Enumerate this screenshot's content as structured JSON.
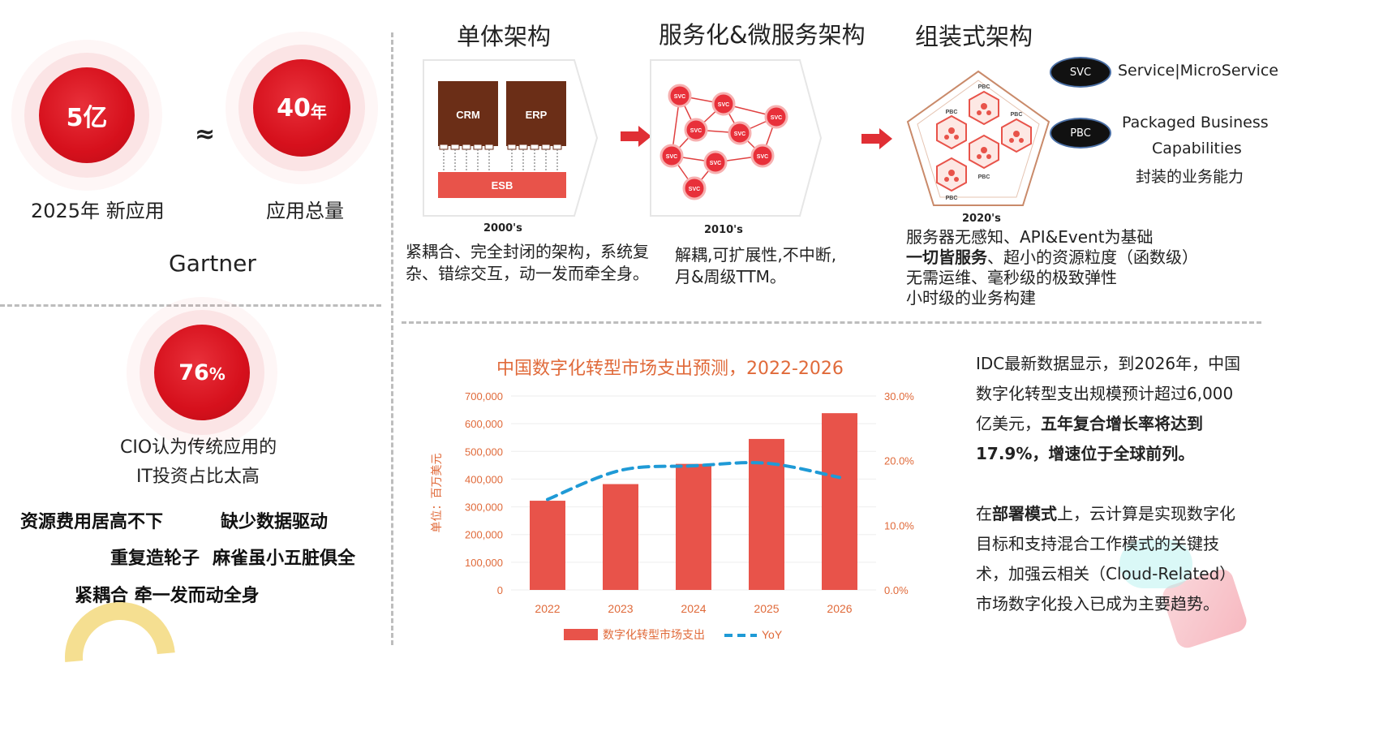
{
  "left_stats": {
    "circle1": {
      "value": "5亿",
      "caption": "2025年 新应用"
    },
    "approx": "≈",
    "circle2": {
      "value": "40",
      "unit": "年",
      "caption": "应用总量"
    },
    "source": "Gartner",
    "circle3": {
      "value": "76",
      "unit": "%",
      "caption_line1": "CIO认为传统应用的",
      "caption_line2": "IT投资占比太高"
    },
    "tags": [
      "资源费用居高不下",
      "缺少数据驱动",
      "重复造轮子",
      "麻雀虽小五脏俱全",
      "紧耦合 牵一发而动全身"
    ]
  },
  "architectures": [
    {
      "title": "单体架构",
      "era": "2000's",
      "blocks": [
        "CRM",
        "ERP",
        "ESB"
      ],
      "desc_line1": "紧耦合、完全封闭的架构，系统复",
      "desc_line2": "杂、错综交互，动一发而牵全身。"
    },
    {
      "title": "服务化&微服务架构",
      "era": "2010's",
      "node_label": "SVC",
      "desc_line1": "解耦,可扩展性,不中断,",
      "desc_line2": "月&周级TTM。"
    },
    {
      "title": "组装式架构",
      "era": "2020's",
      "node_label": "PBC",
      "desc_lines": [
        {
          "pre": "服务器无感知、API&Event为基础",
          "bold": "",
          "post": ""
        },
        {
          "pre": "",
          "bold": "一切皆服务",
          "post": "、超小的资源粒度（函数级）"
        },
        {
          "pre": "无需运维、毫秒级的极致弹性",
          "bold": "",
          "post": ""
        },
        {
          "pre": "小时级的业务构建",
          "bold": "",
          "post": ""
        }
      ]
    }
  ],
  "legend": {
    "svc": {
      "abbr": "SVC",
      "text": "Service|MicroService"
    },
    "pbc": {
      "abbr": "PBC",
      "line1": "Packaged Business",
      "line2": "Capabilities",
      "line3": "封装的业务能力"
    }
  },
  "chart_data": {
    "type": "bar",
    "title": "中国数字化转型市场支出预测，2022-2026",
    "categories": [
      "2022",
      "2023",
      "2024",
      "2025",
      "2026"
    ],
    "series": [
      {
        "name": "数字化转型市场支出",
        "type": "bar",
        "axis": "left",
        "values": [
          322000,
          382000,
          455000,
          545000,
          638000
        ]
      },
      {
        "name": "YoY",
        "type": "line",
        "axis": "right",
        "values": [
          14.0,
          18.5,
          19.2,
          19.6,
          17.4
        ]
      }
    ],
    "ylabel": "单位：百万美元",
    "ylim": [
      0,
      700000
    ],
    "y_ticks": [
      "700,000",
      "600,000",
      "500,000",
      "400,000",
      "300,000",
      "200,000",
      "100,000",
      "0"
    ],
    "y2lim": [
      0,
      30
    ],
    "y2_ticks": [
      "30.0%",
      "20.0%",
      "10.0%",
      "0.0%"
    ],
    "grid": true,
    "legend_position": "bottom"
  },
  "right_text": {
    "p1_pre": "IDC最新数据显示，到2026年，中国数字化转型支出规模预计超过6,000亿美元，",
    "p1_bold": "五年复合增长率将达到17.9%，增速位于全球前列。",
    "p2_pre": "在",
    "p2_bold": "部署模式",
    "p2_post": "上，云计算是实现数字化目标和支持混合工作模式的关键技术，加强云相关（Cloud-Related）市场数字化投入已成为主要趋势。"
  },
  "colors": {
    "brand_red": "#d6101c",
    "bar": "#e8534a",
    "line": "#1f9ad6",
    "chart_text": "#e06a3a",
    "monolith_brown": "#6b2e17"
  }
}
